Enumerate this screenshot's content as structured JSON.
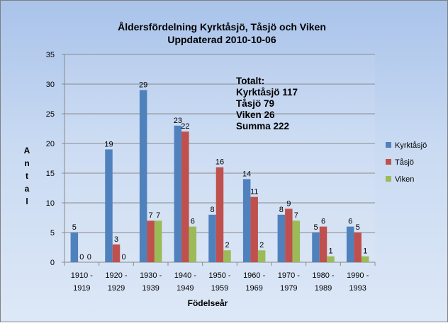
{
  "chart_data": {
    "type": "bar",
    "title": "Åldersfördelning Kyrktåsjö, Tåsjö och Viken",
    "subtitle": "Uppdaterad 2010-10-06",
    "xlabel": "Födelseår",
    "ylabel": "Antal",
    "ylim": [
      0,
      35
    ],
    "yticks": [
      0,
      5,
      10,
      15,
      20,
      25,
      30,
      35
    ],
    "grid": true,
    "legend": "right",
    "categories": [
      [
        "1910 -",
        "1919"
      ],
      [
        "1920 -",
        "1929"
      ],
      [
        "1930 -",
        "1939"
      ],
      [
        "1940 -",
        "1949"
      ],
      [
        "1950 -",
        "1959"
      ],
      [
        "1960 -",
        "1969"
      ],
      [
        "1970 -",
        "1979"
      ],
      [
        "1980 -",
        "1989"
      ],
      [
        "1990 -",
        "1993"
      ]
    ],
    "series": [
      {
        "name": "Kyrktåsjö",
        "color": "#4f81bd",
        "values": [
          5,
          19,
          29,
          23,
          8,
          14,
          8,
          5,
          6
        ]
      },
      {
        "name": "Tåsjö",
        "color": "#c0504d",
        "values": [
          0,
          3,
          7,
          22,
          16,
          11,
          9,
          6,
          5
        ]
      },
      {
        "name": "Viken",
        "color": "#9bbb59",
        "values": [
          0,
          0,
          7,
          6,
          2,
          2,
          7,
          1,
          1
        ]
      }
    ],
    "annotation": [
      "Totalt:",
      "Kyrktåsjö 117",
      "Tåsjö 79",
      "Viken 26",
      "Summa 222"
    ]
  }
}
